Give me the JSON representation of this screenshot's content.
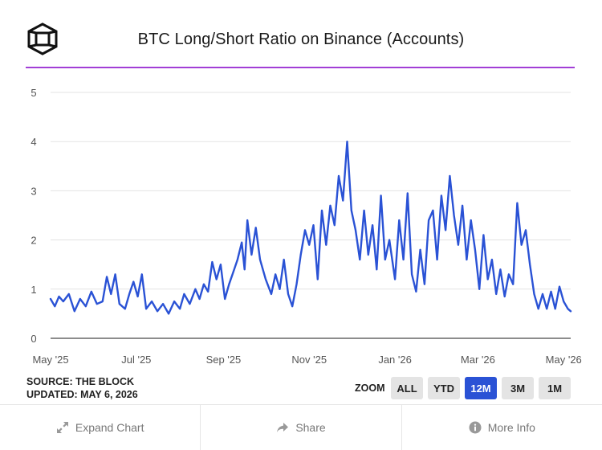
{
  "header": {
    "title": "BTC Long/Short Ratio on Binance (Accounts)"
  },
  "footer": {
    "source": "SOURCE: THE BLOCK",
    "updated": "UPDATED: MAY 6, 2026"
  },
  "zoom": {
    "label": "ZOOM",
    "options": [
      "ALL",
      "YTD",
      "12M",
      "3M",
      "1M"
    ],
    "active": "12M"
  },
  "actions": {
    "expand": "Expand Chart",
    "share": "Share",
    "more": "More Info"
  },
  "colors": {
    "line": "#2a52d5",
    "accent": "#a23fd6",
    "button_active": "#2a52d5"
  },
  "chart_data": {
    "type": "line",
    "title": "BTC Long/Short Ratio on Binance (Accounts)",
    "xlabel": "",
    "ylabel": "",
    "grid": true,
    "x_range": [
      "2025-05-01",
      "2026-05-06"
    ],
    "ylim": [
      0,
      5
    ],
    "yticks": [
      0,
      1,
      2,
      3,
      4,
      5
    ],
    "xticks": [
      {
        "date": "2025-05-01",
        "label": "May '25"
      },
      {
        "date": "2025-07-01",
        "label": "Jul '25"
      },
      {
        "date": "2025-09-01",
        "label": "Sep '25"
      },
      {
        "date": "2025-11-01",
        "label": "Nov '25"
      },
      {
        "date": "2026-01-01",
        "label": "Jan '26"
      },
      {
        "date": "2026-03-01",
        "label": "Mar '26"
      },
      {
        "date": "2026-05-01",
        "label": "May '26"
      }
    ],
    "series": [
      {
        "points": [
          [
            "2025-05-01",
            0.8
          ],
          [
            "2025-05-04",
            0.65
          ],
          [
            "2025-05-07",
            0.85
          ],
          [
            "2025-05-10",
            0.75
          ],
          [
            "2025-05-14",
            0.9
          ],
          [
            "2025-05-18",
            0.55
          ],
          [
            "2025-05-22",
            0.8
          ],
          [
            "2025-05-26",
            0.65
          ],
          [
            "2025-05-30",
            0.95
          ],
          [
            "2025-06-03",
            0.7
          ],
          [
            "2025-06-07",
            0.75
          ],
          [
            "2025-06-10",
            1.25
          ],
          [
            "2025-06-13",
            0.9
          ],
          [
            "2025-06-16",
            1.3
          ],
          [
            "2025-06-19",
            0.7
          ],
          [
            "2025-06-23",
            0.6
          ],
          [
            "2025-06-26",
            0.9
          ],
          [
            "2025-06-29",
            1.15
          ],
          [
            "2025-07-02",
            0.85
          ],
          [
            "2025-07-05",
            1.3
          ],
          [
            "2025-07-08",
            0.6
          ],
          [
            "2025-07-12",
            0.75
          ],
          [
            "2025-07-16",
            0.55
          ],
          [
            "2025-07-20",
            0.7
          ],
          [
            "2025-07-24",
            0.5
          ],
          [
            "2025-07-28",
            0.75
          ],
          [
            "2025-08-01",
            0.6
          ],
          [
            "2025-08-04",
            0.9
          ],
          [
            "2025-08-08",
            0.7
          ],
          [
            "2025-08-12",
            1.0
          ],
          [
            "2025-08-15",
            0.8
          ],
          [
            "2025-08-18",
            1.1
          ],
          [
            "2025-08-21",
            0.95
          ],
          [
            "2025-08-24",
            1.55
          ],
          [
            "2025-08-27",
            1.2
          ],
          [
            "2025-08-30",
            1.5
          ],
          [
            "2025-09-02",
            0.8
          ],
          [
            "2025-09-05",
            1.1
          ],
          [
            "2025-09-08",
            1.35
          ],
          [
            "2025-09-11",
            1.6
          ],
          [
            "2025-09-14",
            1.95
          ],
          [
            "2025-09-16",
            1.4
          ],
          [
            "2025-09-18",
            2.4
          ],
          [
            "2025-09-21",
            1.7
          ],
          [
            "2025-09-24",
            2.25
          ],
          [
            "2025-09-27",
            1.6
          ],
          [
            "2025-10-01",
            1.2
          ],
          [
            "2025-10-05",
            0.9
          ],
          [
            "2025-10-08",
            1.3
          ],
          [
            "2025-10-11",
            1.0
          ],
          [
            "2025-10-14",
            1.6
          ],
          [
            "2025-10-17",
            0.9
          ],
          [
            "2025-10-20",
            0.65
          ],
          [
            "2025-10-23",
            1.1
          ],
          [
            "2025-10-26",
            1.7
          ],
          [
            "2025-10-29",
            2.2
          ],
          [
            "2025-11-01",
            1.9
          ],
          [
            "2025-11-04",
            2.3
          ],
          [
            "2025-11-07",
            1.2
          ],
          [
            "2025-11-10",
            2.6
          ],
          [
            "2025-11-13",
            1.9
          ],
          [
            "2025-11-16",
            2.7
          ],
          [
            "2025-11-19",
            2.3
          ],
          [
            "2025-11-22",
            3.3
          ],
          [
            "2025-11-25",
            2.8
          ],
          [
            "2025-11-28",
            4.0
          ],
          [
            "2025-12-01",
            2.6
          ],
          [
            "2025-12-04",
            2.2
          ],
          [
            "2025-12-07",
            1.6
          ],
          [
            "2025-12-10",
            2.6
          ],
          [
            "2025-12-13",
            1.7
          ],
          [
            "2025-12-16",
            2.3
          ],
          [
            "2025-12-19",
            1.4
          ],
          [
            "2025-12-22",
            2.9
          ],
          [
            "2025-12-25",
            1.6
          ],
          [
            "2025-12-28",
            2.0
          ],
          [
            "2026-01-01",
            1.2
          ],
          [
            "2026-01-04",
            2.4
          ],
          [
            "2026-01-07",
            1.6
          ],
          [
            "2026-01-10",
            2.95
          ],
          [
            "2026-01-13",
            1.3
          ],
          [
            "2026-01-16",
            0.95
          ],
          [
            "2026-01-19",
            1.8
          ],
          [
            "2026-01-22",
            1.1
          ],
          [
            "2026-01-25",
            2.4
          ],
          [
            "2026-01-28",
            2.6
          ],
          [
            "2026-01-31",
            1.6
          ],
          [
            "2026-02-03",
            2.9
          ],
          [
            "2026-02-06",
            2.2
          ],
          [
            "2026-02-09",
            3.3
          ],
          [
            "2026-02-12",
            2.5
          ],
          [
            "2026-02-15",
            1.9
          ],
          [
            "2026-02-18",
            2.7
          ],
          [
            "2026-02-21",
            1.6
          ],
          [
            "2026-02-24",
            2.4
          ],
          [
            "2026-02-27",
            1.8
          ],
          [
            "2026-03-02",
            1.0
          ],
          [
            "2026-03-05",
            2.1
          ],
          [
            "2026-03-08",
            1.2
          ],
          [
            "2026-03-11",
            1.6
          ],
          [
            "2026-03-14",
            0.9
          ],
          [
            "2026-03-17",
            1.4
          ],
          [
            "2026-03-20",
            0.85
          ],
          [
            "2026-03-23",
            1.3
          ],
          [
            "2026-03-26",
            1.1
          ],
          [
            "2026-03-29",
            2.75
          ],
          [
            "2026-04-01",
            1.9
          ],
          [
            "2026-04-04",
            2.2
          ],
          [
            "2026-04-07",
            1.5
          ],
          [
            "2026-04-10",
            0.9
          ],
          [
            "2026-04-13",
            0.6
          ],
          [
            "2026-04-16",
            0.9
          ],
          [
            "2026-04-19",
            0.6
          ],
          [
            "2026-04-22",
            0.95
          ],
          [
            "2026-04-25",
            0.6
          ],
          [
            "2026-04-28",
            1.05
          ],
          [
            "2026-05-01",
            0.75
          ],
          [
            "2026-05-04",
            0.6
          ],
          [
            "2026-05-06",
            0.55
          ]
        ]
      }
    ]
  }
}
